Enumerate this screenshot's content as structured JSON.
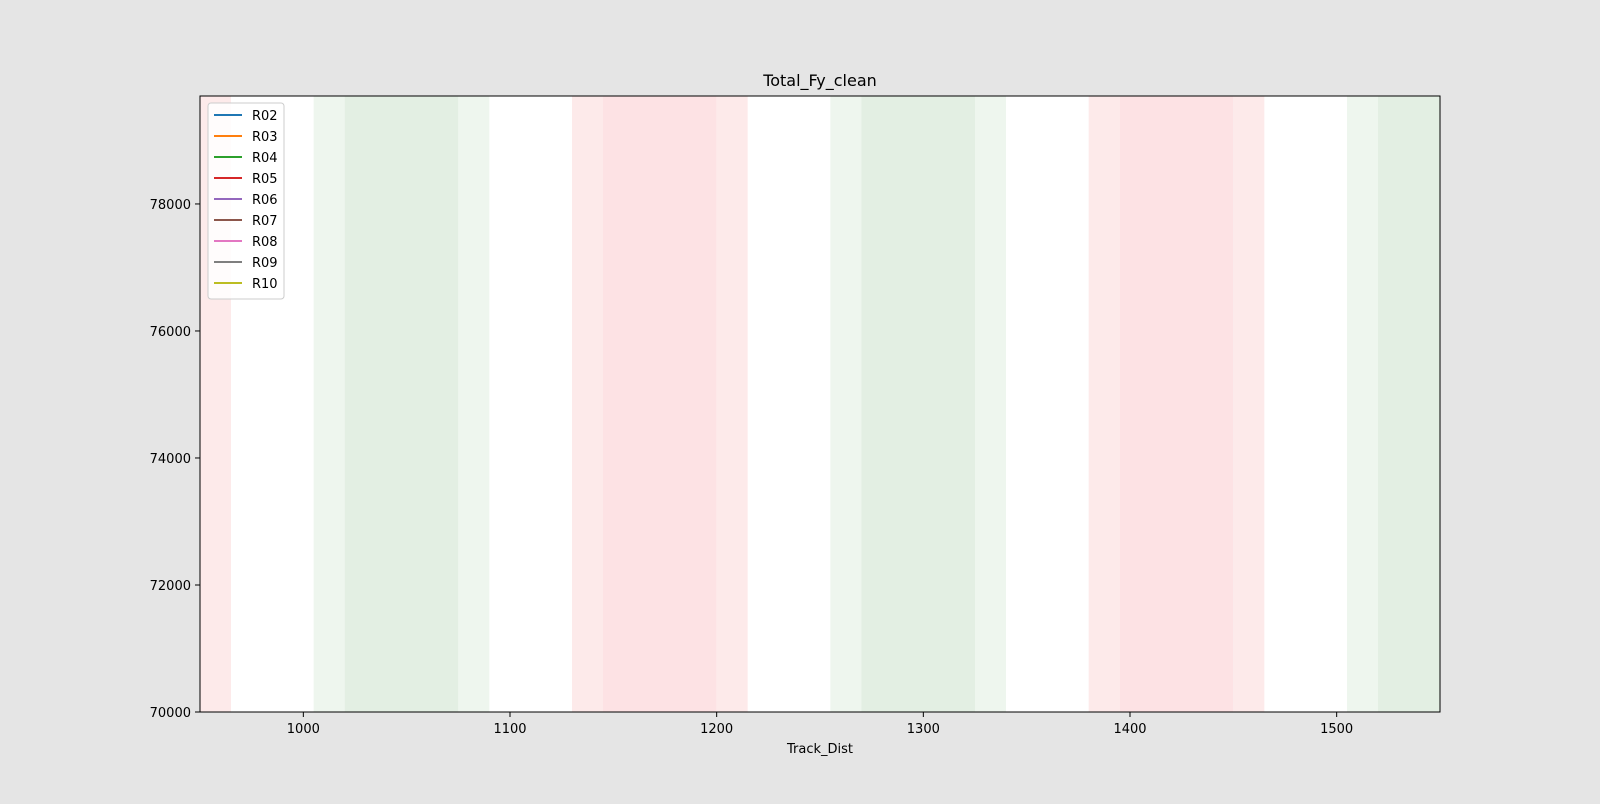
{
  "chart_data": {
    "type": "line",
    "title": "Total_Fy_clean",
    "xlabel": "Track_Dist",
    "ylabel": "",
    "xlim": [
      950,
      1550
    ],
    "ylim": [
      70000,
      79700
    ],
    "xticks": [
      1000,
      1100,
      1200,
      1300,
      1400,
      1500
    ],
    "yticks": [
      70000,
      72000,
      74000,
      76000,
      78000
    ],
    "grid": false,
    "legend_position": "upper-left",
    "series": [
      {
        "name": "R02",
        "color": "#1f77b4",
        "values": []
      },
      {
        "name": "R03",
        "color": "#ff7f0e",
        "values": []
      },
      {
        "name": "R04",
        "color": "#2ca02c",
        "values": []
      },
      {
        "name": "R05",
        "color": "#d62728",
        "values": []
      },
      {
        "name": "R06",
        "color": "#9467bd",
        "values": []
      },
      {
        "name": "R07",
        "color": "#8c564b",
        "values": []
      },
      {
        "name": "R08",
        "color": "#e377c2",
        "values": []
      },
      {
        "name": "R09",
        "color": "#7f7f7f",
        "values": []
      },
      {
        "name": "R10",
        "color": "#bcbd22",
        "values": []
      }
    ],
    "shaded_spans": [
      {
        "x0": 950,
        "x1": 965,
        "color": "#fdeaea",
        "kind": "red-light"
      },
      {
        "x0": 1005,
        "x1": 1020,
        "color": "#eef6ee",
        "kind": "green-light"
      },
      {
        "x0": 1020,
        "x1": 1075,
        "color": "#e3efe3",
        "kind": "green"
      },
      {
        "x0": 1075,
        "x1": 1090,
        "color": "#eef6ee",
        "kind": "green-light"
      },
      {
        "x0": 1130,
        "x1": 1145,
        "color": "#fdeaea",
        "kind": "red-light"
      },
      {
        "x0": 1145,
        "x1": 1200,
        "color": "#fde2e4",
        "kind": "red"
      },
      {
        "x0": 1200,
        "x1": 1215,
        "color": "#fdeaea",
        "kind": "red-light"
      },
      {
        "x0": 1255,
        "x1": 1270,
        "color": "#eef6ee",
        "kind": "green-light"
      },
      {
        "x0": 1270,
        "x1": 1325,
        "color": "#e3efe3",
        "kind": "green"
      },
      {
        "x0": 1325,
        "x1": 1340,
        "color": "#eef6ee",
        "kind": "green-light"
      },
      {
        "x0": 1380,
        "x1": 1395,
        "color": "#fdeaea",
        "kind": "red-light"
      },
      {
        "x0": 1395,
        "x1": 1450,
        "color": "#fde2e4",
        "kind": "red"
      },
      {
        "x0": 1450,
        "x1": 1465,
        "color": "#fdeaea",
        "kind": "red-light"
      },
      {
        "x0": 1505,
        "x1": 1520,
        "color": "#eef6ee",
        "kind": "green-light"
      },
      {
        "x0": 1520,
        "x1": 1550,
        "color": "#e3efe3",
        "kind": "green"
      }
    ]
  }
}
